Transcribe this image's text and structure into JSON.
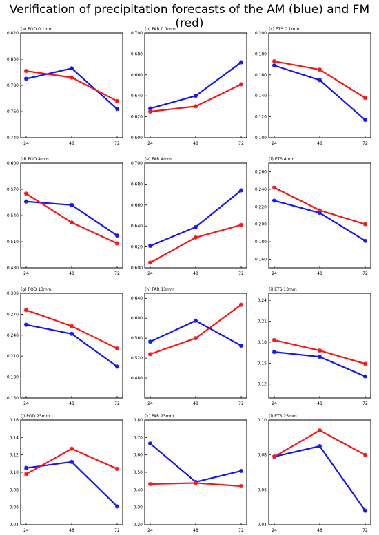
{
  "title": "Verification of precipitation forecasts of the AM (blue) and FM (red)",
  "colors": {
    "AM": "#1414ff",
    "FM": "#ff1414"
  },
  "chart_data": [
    {
      "type": "line",
      "title": "(a) POD 0.1mm",
      "x": [
        24,
        48,
        72
      ],
      "ylim": [
        0.74,
        0.82
      ],
      "yticks": [
        "0.740",
        "0.760",
        "0.780",
        "0.800",
        "0.820"
      ],
      "series": [
        {
          "name": "AM",
          "values": [
            0.785,
            0.793,
            0.762
          ]
        },
        {
          "name": "FM",
          "values": [
            0.791,
            0.786,
            0.768
          ]
        }
      ]
    },
    {
      "type": "line",
      "title": "(b) FAR 0.1mm",
      "x": [
        24,
        48,
        72
      ],
      "ylim": [
        0.6,
        0.7
      ],
      "yticks": [
        "0.600",
        "0.620",
        "0.640",
        "0.660",
        "0.680",
        "0.700"
      ],
      "series": [
        {
          "name": "AM",
          "values": [
            0.628,
            0.64,
            0.672
          ]
        },
        {
          "name": "FM",
          "values": [
            0.625,
            0.63,
            0.651
          ]
        }
      ]
    },
    {
      "type": "line",
      "title": "(c) ETS 0.1mm",
      "x": [
        24,
        48,
        72
      ],
      "ylim": [
        0.1,
        0.2
      ],
      "yticks": [
        "0.100",
        "0.120",
        "0.140",
        "0.160",
        "0.180",
        "0.200"
      ],
      "series": [
        {
          "name": "AM",
          "values": [
            0.169,
            0.155,
            0.117
          ]
        },
        {
          "name": "FM",
          "values": [
            0.173,
            0.165,
            0.138
          ]
        }
      ]
    },
    {
      "type": "line",
      "title": "(d) POD 4mm",
      "x": [
        24,
        48,
        72
      ],
      "ylim": [
        0.48,
        0.6
      ],
      "yticks": [
        "0.480",
        "0.510",
        "0.540",
        "0.570",
        "0.600"
      ],
      "series": [
        {
          "name": "AM",
          "values": [
            0.556,
            0.552,
            0.517
          ]
        },
        {
          "name": "FM",
          "values": [
            0.565,
            0.532,
            0.508
          ]
        }
      ]
    },
    {
      "type": "line",
      "title": "(e) FAR 4mm",
      "x": [
        24,
        48,
        72
      ],
      "ylim": [
        0.6,
        0.7
      ],
      "yticks": [
        "0.600",
        "0.620",
        "0.640",
        "0.660",
        "0.680",
        "0.700"
      ],
      "series": [
        {
          "name": "AM",
          "values": [
            0.621,
            0.639,
            0.674
          ]
        },
        {
          "name": "FM",
          "values": [
            0.605,
            0.629,
            0.641
          ]
        }
      ]
    },
    {
      "type": "line",
      "title": "(f) ETS 4mm",
      "x": [
        24,
        48,
        72
      ],
      "ylim": [
        0.15,
        0.27
      ],
      "yticks": [
        "0.160",
        "0.180",
        "0.200",
        "0.220",
        "0.240",
        "0.260"
      ],
      "series": [
        {
          "name": "AM",
          "values": [
            0.227,
            0.213,
            0.181
          ]
        },
        {
          "name": "FM",
          "values": [
            0.242,
            0.216,
            0.2
          ]
        }
      ]
    },
    {
      "type": "line",
      "title": "(g) POD 13mm",
      "x": [
        24,
        48,
        72
      ],
      "ylim": [
        0.15,
        0.3
      ],
      "yticks": [
        "0.150",
        "0.180",
        "0.210",
        "0.240",
        "0.270",
        "0.300"
      ],
      "series": [
        {
          "name": "AM",
          "values": [
            0.255,
            0.242,
            0.195
          ]
        },
        {
          "name": "FM",
          "values": [
            0.276,
            0.253,
            0.221
          ]
        }
      ]
    },
    {
      "type": "line",
      "title": "(h) FAR 13mm",
      "x": [
        24,
        48,
        72
      ],
      "ylim": [
        0.44,
        0.65
      ],
      "yticks": [
        "0.480",
        "0.520",
        "0.560",
        "0.600",
        "0.640"
      ],
      "series": [
        {
          "name": "AM",
          "values": [
            0.553,
            0.595,
            0.545
          ]
        },
        {
          "name": "FM",
          "values": [
            0.528,
            0.56,
            0.627
          ]
        }
      ]
    },
    {
      "type": "line",
      "title": "(i) ETS 13mm",
      "x": [
        24,
        48,
        72
      ],
      "ylim": [
        0.1,
        0.25
      ],
      "yticks": [
        "0.12",
        "0.15",
        "0.18",
        "0.21",
        "0.24"
      ],
      "series": [
        {
          "name": "AM",
          "values": [
            0.166,
            0.159,
            0.131
          ]
        },
        {
          "name": "FM",
          "values": [
            0.183,
            0.168,
            0.149
          ]
        }
      ]
    },
    {
      "type": "line",
      "title": "(j) POD 25mm",
      "x": [
        24,
        48,
        72
      ],
      "ylim": [
        0.04,
        0.16
      ],
      "yticks": [
        "0.04",
        "0.06",
        "0.08",
        "0.10",
        "0.12",
        "0.14",
        "0.16"
      ],
      "series": [
        {
          "name": "AM",
          "values": [
            0.105,
            0.112,
            0.061
          ]
        },
        {
          "name": "FM",
          "values": [
            0.098,
            0.127,
            0.104
          ]
        }
      ]
    },
    {
      "type": "line",
      "title": "(k) FAR 25mm",
      "x": [
        24,
        48,
        72
      ],
      "ylim": [
        0.2,
        0.8
      ],
      "yticks": [
        "0.20",
        "0.30",
        "0.40",
        "0.50",
        "0.60",
        "0.70",
        "0.80"
      ],
      "series": [
        {
          "name": "AM",
          "values": [
            0.665,
            0.445,
            0.508
          ]
        },
        {
          "name": "FM",
          "values": [
            0.433,
            0.439,
            0.421
          ]
        }
      ]
    },
    {
      "type": "line",
      "title": "(l) ETS 25mm",
      "x": [
        24,
        48,
        72
      ],
      "ylim": [
        0.04,
        0.1
      ],
      "yticks": [
        "0.04",
        "0.06",
        "0.08",
        "0.10"
      ],
      "series": [
        {
          "name": "AM",
          "values": [
            0.079,
            0.085,
            0.048
          ]
        },
        {
          "name": "FM",
          "values": [
            0.079,
            0.094,
            0.08
          ]
        }
      ]
    }
  ]
}
